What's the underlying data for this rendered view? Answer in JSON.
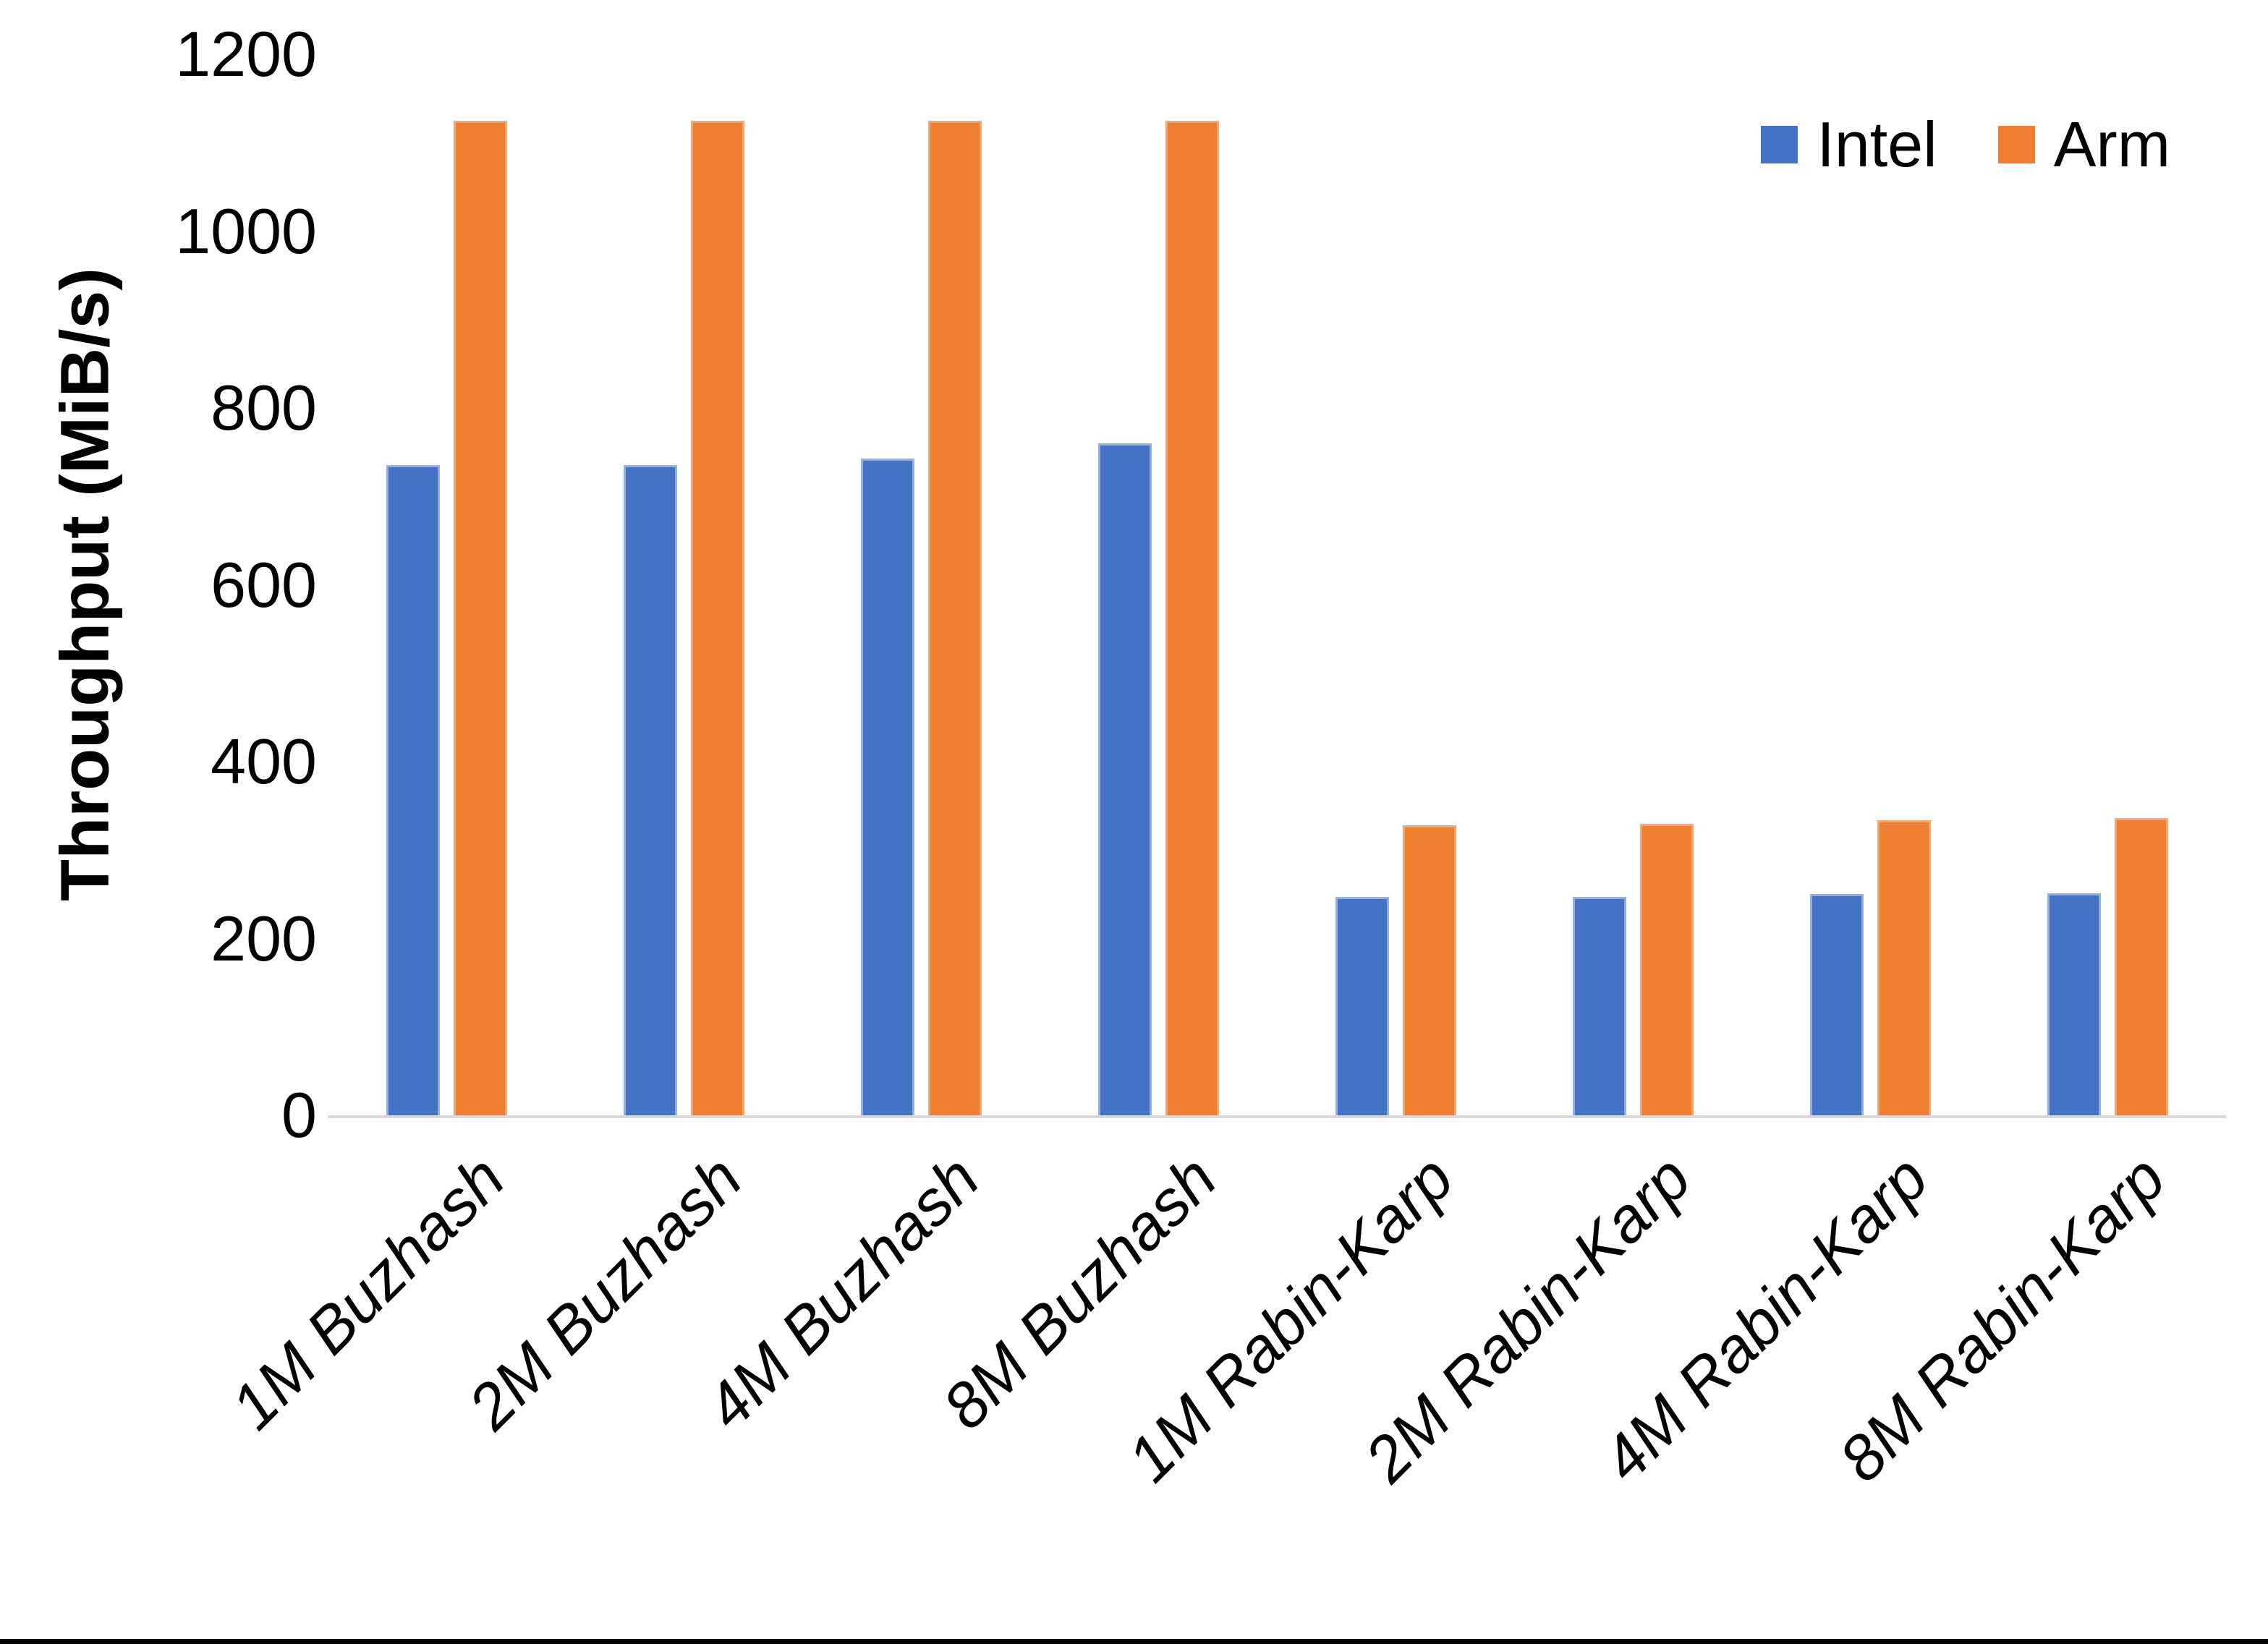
{
  "figure": {
    "background_color": "#ffffff",
    "bottom_edge_color": "#000000"
  },
  "chart_data": {
    "type": "bar",
    "title": "",
    "xlabel": "",
    "ylabel": "Throughput (MiB/s)",
    "categories": [
      "1M Buzhash",
      "2M Buzhash",
      "4M Buzhash",
      "8M Buzhash",
      "1M Rabin-Karp",
      "2M Rabin-Karp",
      "4M Rabin-Karp",
      "8M Rabin-Karp"
    ],
    "series": [
      {
        "name": "Intel",
        "color": "#4472C4",
        "border_color": "#96B1E0",
        "values": [
          735,
          735,
          743,
          760,
          247,
          247,
          250,
          251
        ]
      },
      {
        "name": "Arm",
        "color": "#ED7D31",
        "border_color": "#F2A86F",
        "values": [
          1125,
          1125,
          1125,
          1125,
          328,
          330,
          334,
          336
        ]
      }
    ],
    "ylim": [
      0,
      1200
    ],
    "yticks": [
      0,
      200,
      400,
      600,
      800,
      1000,
      1200
    ],
    "grid": false,
    "legend_position": "top-right",
    "axis_line_color": "#D9D9D9",
    "x_labels_rotation_deg": -45,
    "x_labels_italic": true
  }
}
